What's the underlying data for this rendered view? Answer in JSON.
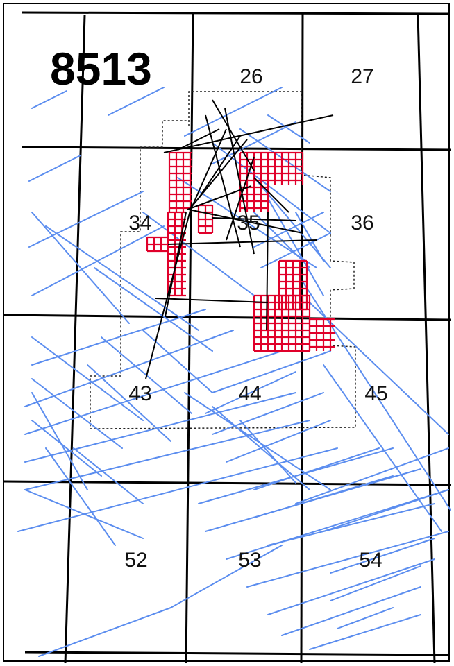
{
  "map": {
    "title": "8513",
    "blocks": [
      {
        "label": "26"
      },
      {
        "label": "27"
      },
      {
        "label": "34"
      },
      {
        "label": "35"
      },
      {
        "label": "36"
      },
      {
        "label": "43"
      },
      {
        "label": "44"
      },
      {
        "label": "45"
      },
      {
        "label": "52"
      },
      {
        "label": "53"
      },
      {
        "label": "54"
      }
    ],
    "colors": {
      "grid": "#000000",
      "seismic_2d": "#5b8def",
      "seismic_3d": "#e0002a",
      "boundary": "#222222"
    }
  }
}
